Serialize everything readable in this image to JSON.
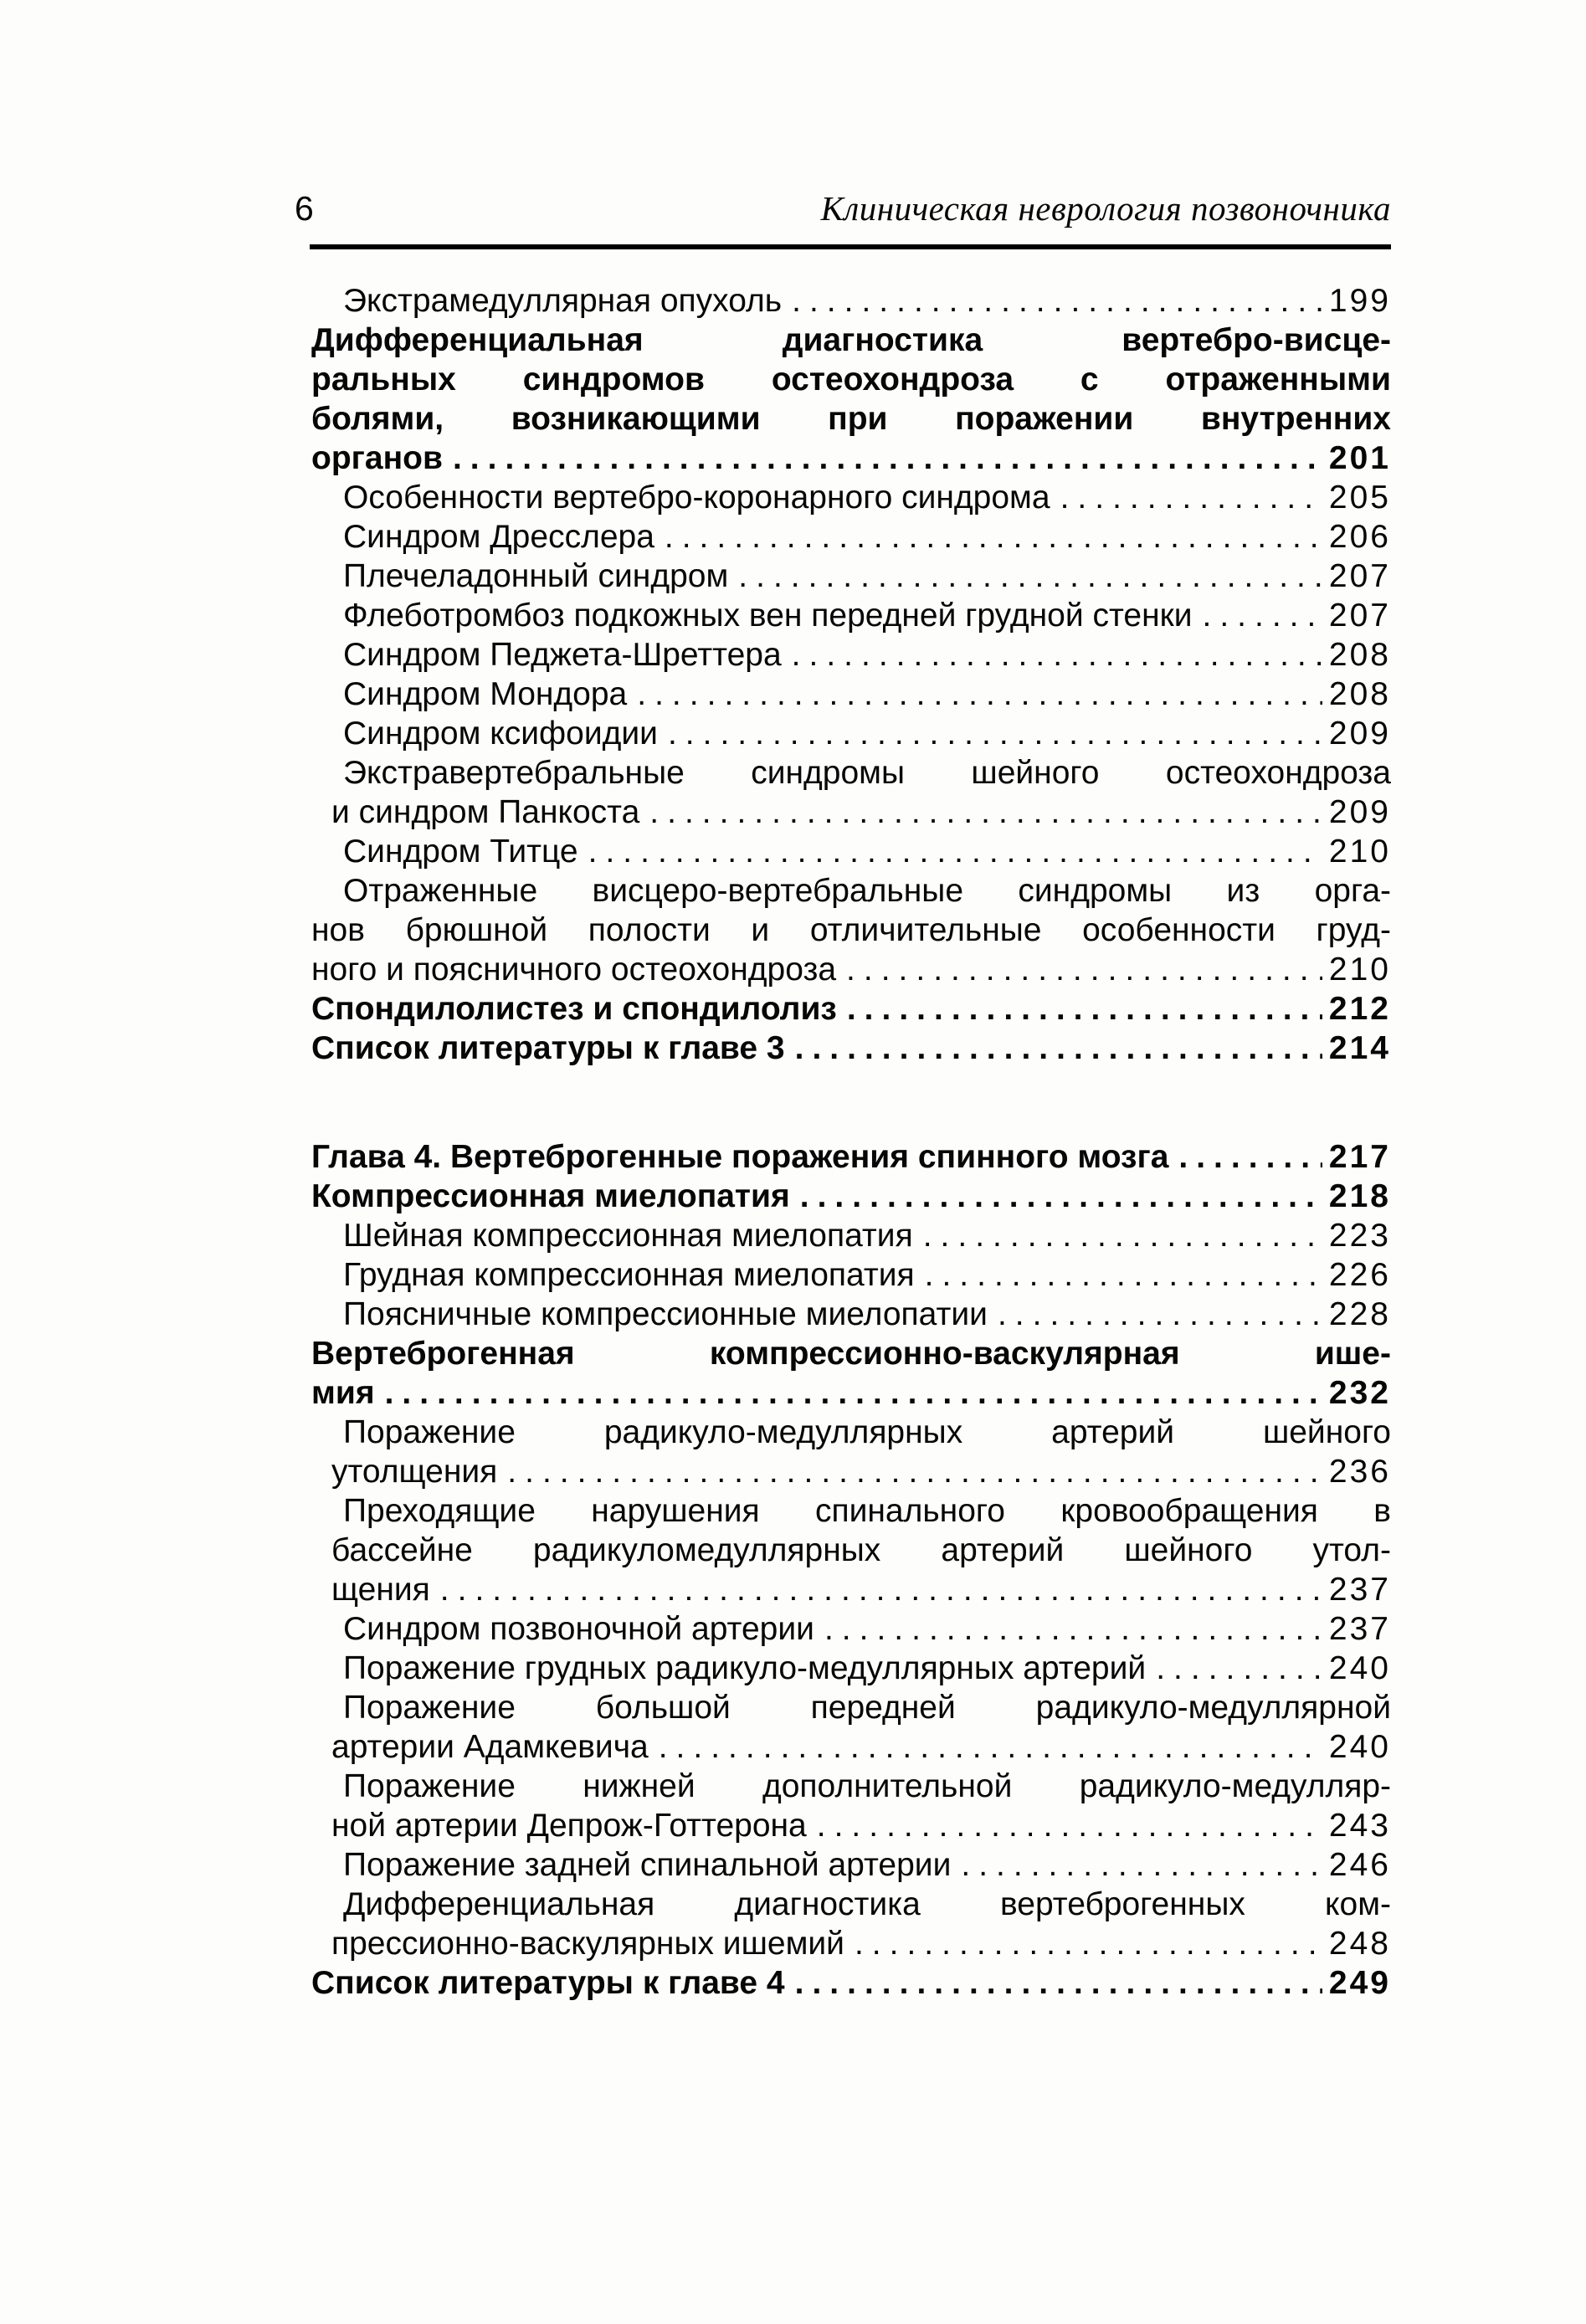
{
  "page": {
    "number": "6",
    "running_title": "Клиническая неврология позвоночника"
  },
  "toc": {
    "entries": [
      {
        "style": "sub",
        "lines": [],
        "last": "Экстрамедуллярная опухоль",
        "page": "199"
      },
      {
        "style": "bold",
        "lines": [
          "Дифференциальная диагностика вертебро-висце-",
          "ральных синдромов остеохондроза с отраженными",
          "болями, возникающими при поражении внутренних"
        ],
        "last": "органов",
        "page": "201"
      },
      {
        "style": "sub",
        "lines": [],
        "last": "Особенности вертебро-коронарного синдрома",
        "page": "205"
      },
      {
        "style": "sub",
        "lines": [],
        "last": "Синдром Дресслера",
        "page": "206"
      },
      {
        "style": "sub",
        "lines": [],
        "last": "Плечеладонный синдром",
        "page": "207"
      },
      {
        "style": "sub",
        "lines": [],
        "last": "Флеботромбоз подкожных вен передней грудной стенки",
        "page": "207"
      },
      {
        "style": "sub",
        "lines": [],
        "last": "Синдром Педжета-Шреттера",
        "page": "208"
      },
      {
        "style": "sub",
        "lines": [],
        "last": "Синдром Мондора",
        "page": "208"
      },
      {
        "style": "sub",
        "lines": [],
        "last": "Синдром ксифоидии",
        "page": "209"
      },
      {
        "style": "sub",
        "lines": [
          "Экстравертебральные синдромы шейного остеохондроза"
        ],
        "last": "и синдром Панкоста",
        "page": "209"
      },
      {
        "style": "sub",
        "lines": [],
        "last": "Синдром Титце",
        "page": "210"
      },
      {
        "style": "sub",
        "outdent": true,
        "lines": [
          "Отраженные висцеро-вертебральные синдромы из орга-",
          "нов брюшной полости и отличительные особенности груд-"
        ],
        "last": "ного и поясничного остеохондроза",
        "page": "210"
      },
      {
        "style": "bold",
        "lines": [],
        "last": "Спондилолистез и спондилолиз",
        "page": "212"
      },
      {
        "style": "bold",
        "lines": [],
        "last": "Список литературы к главе 3",
        "page": "214"
      },
      {
        "style": "bold",
        "gap_before": true,
        "lines": [],
        "last": "Глава 4. Вертеброгенные поражения спинного мозга",
        "page": "217"
      },
      {
        "style": "bold",
        "lines": [],
        "last": "Компрессионная миелопатия",
        "page": "218"
      },
      {
        "style": "sub",
        "lines": [],
        "last": "Шейная компрессионная миелопатия",
        "page": "223"
      },
      {
        "style": "sub",
        "lines": [],
        "last": "Грудная компрессионная миелопатия",
        "page": "226"
      },
      {
        "style": "sub",
        "lines": [],
        "last": "Поясничные компрессионные миелопатии",
        "page": "228"
      },
      {
        "style": "bold",
        "lines": [
          "Вертеброгенная компрессионно-васкулярная ише-"
        ],
        "last": "мия",
        "page": "232"
      },
      {
        "style": "sub",
        "lines": [
          "Поражение радикуло-медуллярных артерий шейного"
        ],
        "last": "утолщения",
        "page": "236"
      },
      {
        "style": "sub",
        "lines": [
          "Преходящие нарушения спинального кровообращения в",
          "бассейне радикуломедуллярных артерий шейного утол-"
        ],
        "last": "щения",
        "page": "237"
      },
      {
        "style": "sub",
        "lines": [],
        "last": "Синдром позвоночной артерии",
        "page": "237"
      },
      {
        "style": "sub",
        "lines": [],
        "last": "Поражение грудных радикуло-медуллярных артерий",
        "page": "240"
      },
      {
        "style": "sub",
        "lines": [
          "Поражение большой передней радикуло-медуллярной"
        ],
        "last": "артерии Адамкевича",
        "page": "240"
      },
      {
        "style": "sub",
        "lines": [
          "Поражение нижней дополнительной радикуло-медулляр-"
        ],
        "last": "ной артерии Депрож-Готтерона",
        "page": "243"
      },
      {
        "style": "sub",
        "lines": [],
        "last": "Поражение задней спинальной артерии",
        "page": "246"
      },
      {
        "style": "sub",
        "lines": [
          "Дифференциальная диагностика вертеброгенных ком-"
        ],
        "last": "прессионно-васкулярных ишемий",
        "page": "248"
      },
      {
        "style": "bold",
        "lines": [],
        "last": "Список литературы к главе 4",
        "page": "249"
      }
    ]
  }
}
